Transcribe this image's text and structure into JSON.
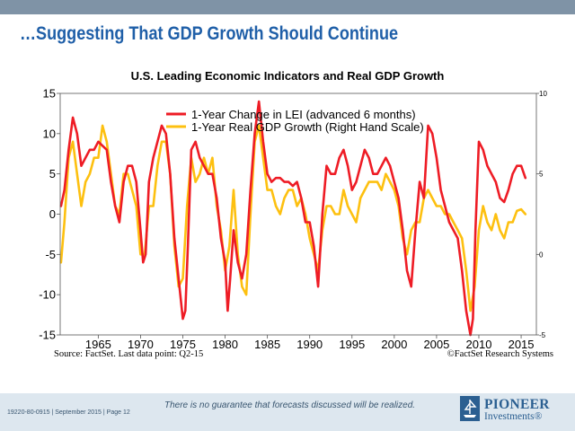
{
  "slide": {
    "title": "…Suggesting That GDP Growth Should Continue",
    "source_note": "Source: FactSet. Last data point: Q2-15",
    "copyright": "©FactSet Research Systems",
    "disclaimer": "There is no guarantee that forecasts discussed will be realized.",
    "doc_ref": "19220-80-0915 | September 2015 | Page 12",
    "logo_name": "PIONEER",
    "logo_sub": "Investments®"
  },
  "chart_data": {
    "type": "line",
    "title": "U.S. Leading Economic Indicators and Real GDP Growth",
    "xlim": [
      1960.5,
      2016.8
    ],
    "x_ticks": [
      1965,
      1970,
      1975,
      1980,
      1985,
      1990,
      1995,
      2000,
      2005,
      2010,
      2015
    ],
    "y_left": {
      "lim": [
        -15,
        15
      ],
      "ticks": [
        -15,
        -10,
        -5,
        0,
        5,
        10,
        15
      ]
    },
    "y_right": {
      "lim": [
        -5,
        10
      ],
      "ticks": [
        -5,
        0,
        5,
        10
      ]
    },
    "grid": false,
    "legend_position": "top-center",
    "series": [
      {
        "name": "1-Year Change in LEI (advanced 6 months)",
        "axis": "left",
        "color": "#ee1c25",
        "points": [
          [
            1960.6,
            1
          ],
          [
            1961,
            3
          ],
          [
            1961.5,
            8
          ],
          [
            1962,
            12
          ],
          [
            1962.5,
            10
          ],
          [
            1963,
            6
          ],
          [
            1963.5,
            7
          ],
          [
            1964,
            8
          ],
          [
            1964.5,
            8
          ],
          [
            1965,
            9
          ],
          [
            1965.5,
            8.5
          ],
          [
            1966,
            8
          ],
          [
            1966.5,
            4
          ],
          [
            1967,
            1
          ],
          [
            1967.5,
            -1
          ],
          [
            1968,
            4
          ],
          [
            1968.5,
            6
          ],
          [
            1969,
            6
          ],
          [
            1969.5,
            4
          ],
          [
            1970,
            -2
          ],
          [
            1970.3,
            -6
          ],
          [
            1970.6,
            -5
          ],
          [
            1971,
            4
          ],
          [
            1971.5,
            7
          ],
          [
            1972,
            9
          ],
          [
            1972.5,
            11
          ],
          [
            1973,
            10
          ],
          [
            1973.5,
            5
          ],
          [
            1974,
            -3
          ],
          [
            1974.5,
            -8
          ],
          [
            1975,
            -13
          ],
          [
            1975.3,
            -12
          ],
          [
            1975.6,
            -4
          ],
          [
            1976,
            8
          ],
          [
            1976.5,
            9
          ],
          [
            1977,
            7
          ],
          [
            1977.5,
            6
          ],
          [
            1978,
            5
          ],
          [
            1978.5,
            5
          ],
          [
            1979,
            2
          ],
          [
            1979.5,
            -3
          ],
          [
            1980,
            -6
          ],
          [
            1980.3,
            -12
          ],
          [
            1980.6,
            -8
          ],
          [
            1981,
            -2
          ],
          [
            1981.5,
            -6
          ],
          [
            1982,
            -8
          ],
          [
            1982.5,
            -5
          ],
          [
            1983,
            3
          ],
          [
            1983.5,
            10
          ],
          [
            1984,
            14
          ],
          [
            1984.5,
            9
          ],
          [
            1985,
            5
          ],
          [
            1985.5,
            4
          ],
          [
            1986,
            4.5
          ],
          [
            1986.5,
            4.5
          ],
          [
            1987,
            4
          ],
          [
            1987.5,
            4
          ],
          [
            1988,
            3.5
          ],
          [
            1988.5,
            4
          ],
          [
            1989,
            2
          ],
          [
            1989.5,
            -1
          ],
          [
            1990,
            -1
          ],
          [
            1990.5,
            -4
          ],
          [
            1991,
            -9
          ],
          [
            1991.5,
            0
          ],
          [
            1992,
            6
          ],
          [
            1992.5,
            5
          ],
          [
            1993,
            5
          ],
          [
            1993.5,
            7
          ],
          [
            1994,
            8
          ],
          [
            1994.5,
            6
          ],
          [
            1995,
            3
          ],
          [
            1995.5,
            4
          ],
          [
            1996,
            6
          ],
          [
            1996.5,
            8
          ],
          [
            1997,
            7
          ],
          [
            1997.5,
            5
          ],
          [
            1998,
            5
          ],
          [
            1998.5,
            6
          ],
          [
            1999,
            7
          ],
          [
            1999.5,
            6
          ],
          [
            2000,
            4
          ],
          [
            2000.5,
            2
          ],
          [
            2001,
            -2
          ],
          [
            2001.5,
            -7
          ],
          [
            2002,
            -9
          ],
          [
            2002.5,
            -2
          ],
          [
            2003,
            4
          ],
          [
            2003.5,
            2
          ],
          [
            2004,
            11
          ],
          [
            2004.5,
            10
          ],
          [
            2005,
            7
          ],
          [
            2005.5,
            3
          ],
          [
            2006,
            1
          ],
          [
            2006.5,
            -1
          ],
          [
            2007,
            -2
          ],
          [
            2007.5,
            -3
          ],
          [
            2008,
            -7
          ],
          [
            2008.5,
            -12
          ],
          [
            2009,
            -15
          ],
          [
            2009.3,
            -13
          ],
          [
            2009.6,
            -2
          ],
          [
            2010,
            9
          ],
          [
            2010.5,
            8
          ],
          [
            2011,
            6
          ],
          [
            2011.5,
            5
          ],
          [
            2012,
            4
          ],
          [
            2012.5,
            2
          ],
          [
            2013,
            1.5
          ],
          [
            2013.5,
            3
          ],
          [
            2014,
            5
          ],
          [
            2014.5,
            6
          ],
          [
            2015,
            6
          ],
          [
            2015.5,
            4.5
          ]
        ]
      },
      {
        "name": "1-Year Real GDP Growth (Right Hand Scale)",
        "axis": "right",
        "color": "#fdc010",
        "points": [
          [
            1960.6,
            -0.5
          ],
          [
            1961,
            2
          ],
          [
            1961.5,
            6
          ],
          [
            1962,
            7
          ],
          [
            1962.5,
            5
          ],
          [
            1963,
            3
          ],
          [
            1963.5,
            4.5
          ],
          [
            1964,
            5
          ],
          [
            1964.5,
            6
          ],
          [
            1965,
            6
          ],
          [
            1965.5,
            8
          ],
          [
            1966,
            7
          ],
          [
            1966.5,
            5
          ],
          [
            1967,
            3
          ],
          [
            1967.5,
            2.5
          ],
          [
            1968,
            5
          ],
          [
            1968.5,
            5
          ],
          [
            1969,
            4
          ],
          [
            1969.5,
            3
          ],
          [
            1970,
            0
          ],
          [
            1970.5,
            0
          ],
          [
            1971,
            3
          ],
          [
            1971.5,
            3
          ],
          [
            1972,
            5.5
          ],
          [
            1972.5,
            7
          ],
          [
            1973,
            7
          ],
          [
            1973.5,
            5
          ],
          [
            1974,
            0.5
          ],
          [
            1974.5,
            -2
          ],
          [
            1975,
            -1.5
          ],
          [
            1975.5,
            3
          ],
          [
            1976,
            6
          ],
          [
            1976.5,
            4.5
          ],
          [
            1977,
            5
          ],
          [
            1977.5,
            6
          ],
          [
            1978,
            5
          ],
          [
            1978.5,
            6
          ],
          [
            1979,
            3
          ],
          [
            1979.5,
            1.5
          ],
          [
            1980,
            -1
          ],
          [
            1980.5,
            0.5
          ],
          [
            1981,
            4
          ],
          [
            1981.5,
            0
          ],
          [
            1982,
            -2
          ],
          [
            1982.5,
            -2.5
          ],
          [
            1983,
            2.5
          ],
          [
            1983.5,
            7
          ],
          [
            1984,
            8
          ],
          [
            1984.5,
            6
          ],
          [
            1985,
            4
          ],
          [
            1985.5,
            4
          ],
          [
            1986,
            3
          ],
          [
            1986.5,
            2.5
          ],
          [
            1987,
            3.5
          ],
          [
            1987.5,
            4
          ],
          [
            1988,
            4
          ],
          [
            1988.5,
            3
          ],
          [
            1989,
            3.5
          ],
          [
            1989.5,
            2.5
          ],
          [
            1990,
            1
          ],
          [
            1990.5,
            0
          ],
          [
            1991,
            -1
          ],
          [
            1991.5,
            1.5
          ],
          [
            1992,
            3
          ],
          [
            1992.5,
            3
          ],
          [
            1993,
            2.5
          ],
          [
            1993.5,
            2.5
          ],
          [
            1994,
            4
          ],
          [
            1994.5,
            3
          ],
          [
            1995,
            2.5
          ],
          [
            1995.5,
            2
          ],
          [
            1996,
            3.5
          ],
          [
            1996.5,
            4
          ],
          [
            1997,
            4.5
          ],
          [
            1997.5,
            4.5
          ],
          [
            1998,
            4.5
          ],
          [
            1998.5,
            4
          ],
          [
            1999,
            5
          ],
          [
            1999.5,
            4.5
          ],
          [
            2000,
            4
          ],
          [
            2000.5,
            3
          ],
          [
            2001,
            1
          ],
          [
            2001.5,
            0
          ],
          [
            2002,
            1.5
          ],
          [
            2002.5,
            2
          ],
          [
            2003,
            2
          ],
          [
            2003.5,
            3.5
          ],
          [
            2004,
            4
          ],
          [
            2004.5,
            3.5
          ],
          [
            2005,
            3
          ],
          [
            2005.5,
            3
          ],
          [
            2006,
            2.5
          ],
          [
            2006.5,
            2.5
          ],
          [
            2007,
            2
          ],
          [
            2007.5,
            1.5
          ],
          [
            2008,
            1
          ],
          [
            2008.5,
            -1
          ],
          [
            2009,
            -3.5
          ],
          [
            2009.5,
            -2
          ],
          [
            2010,
            1.5
          ],
          [
            2010.5,
            3
          ],
          [
            2011,
            2
          ],
          [
            2011.5,
            1.5
          ],
          [
            2012,
            2.5
          ],
          [
            2012.5,
            1.5
          ],
          [
            2013,
            1
          ],
          [
            2013.5,
            2
          ],
          [
            2014,
            2
          ],
          [
            2014.5,
            2.7
          ],
          [
            2015,
            2.8
          ],
          [
            2015.5,
            2.5
          ]
        ]
      }
    ]
  }
}
